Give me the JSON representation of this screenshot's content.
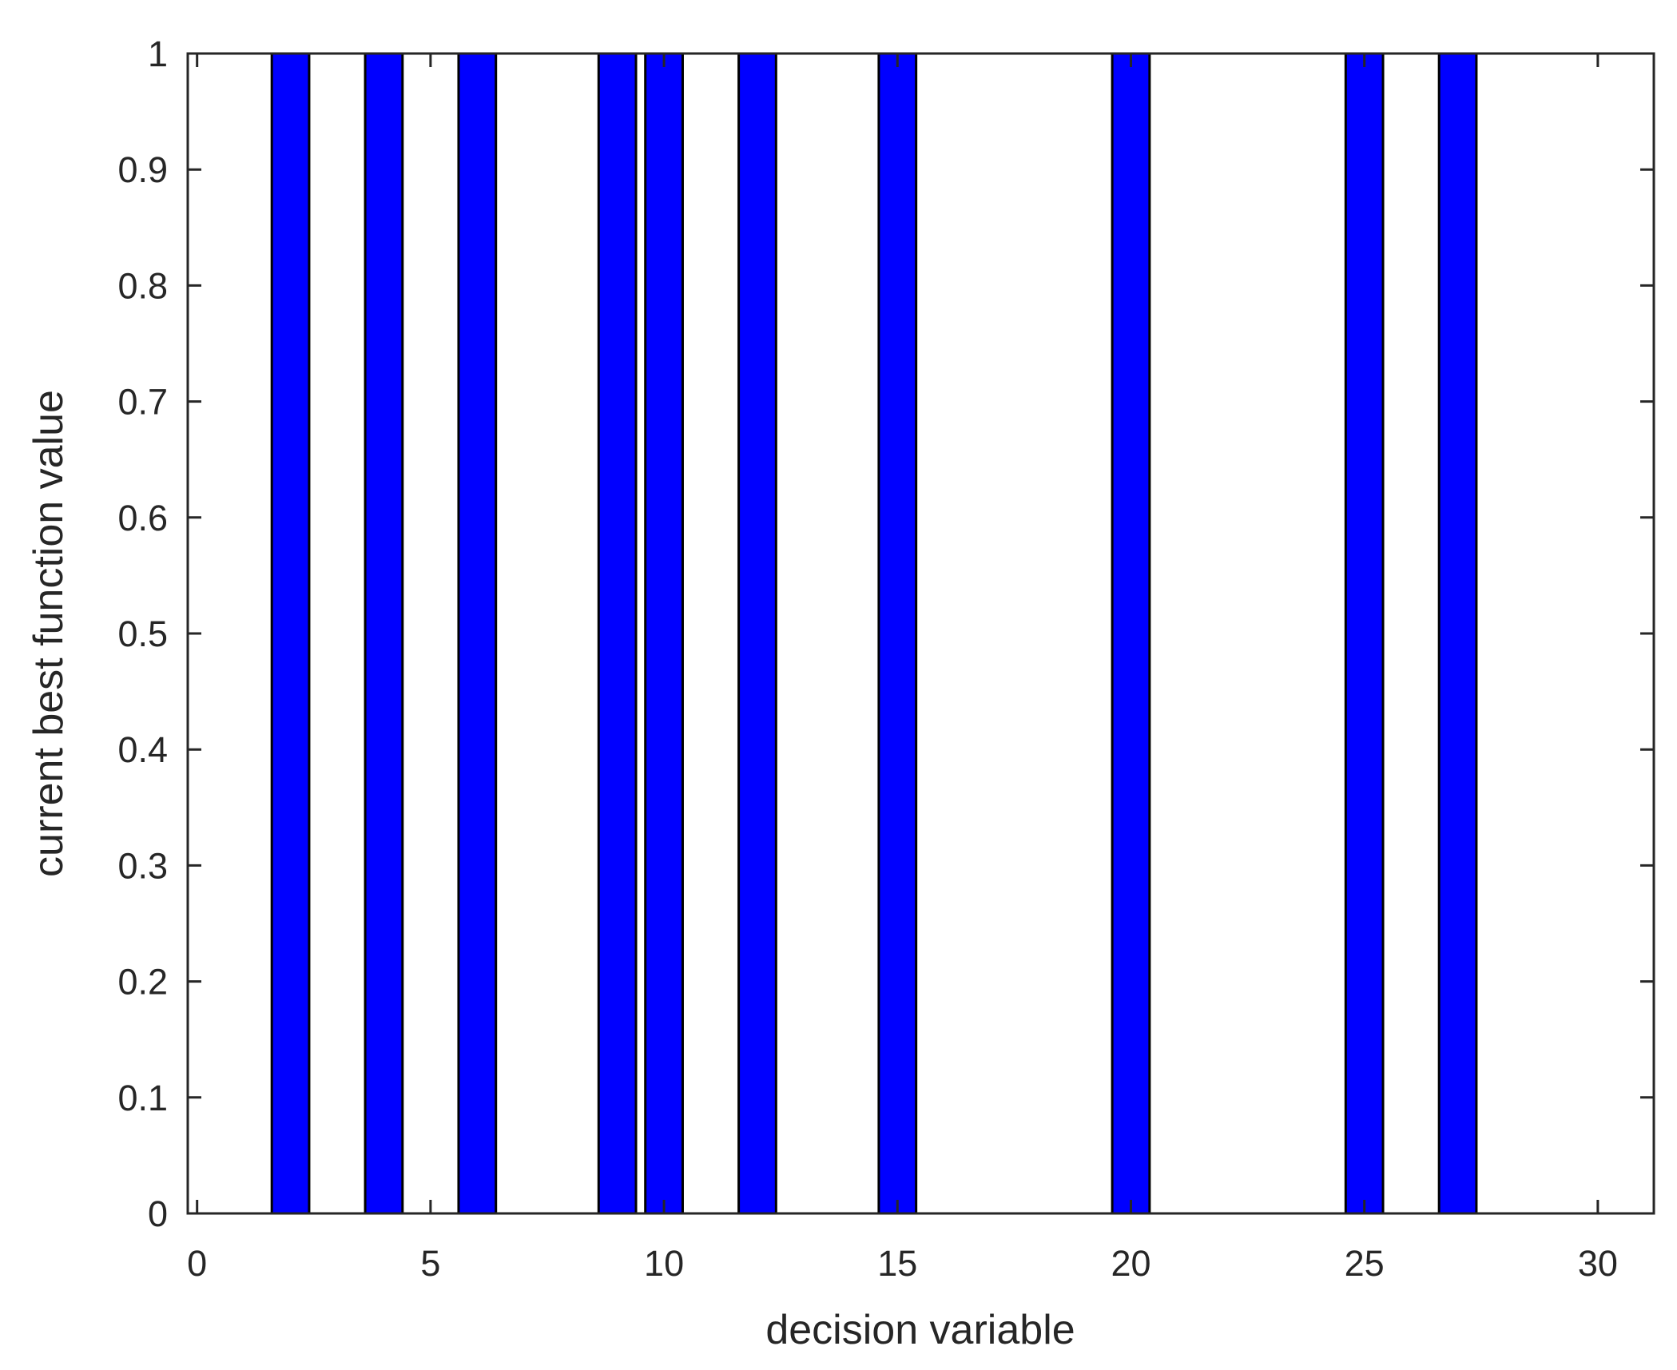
{
  "chart_data": {
    "type": "bar",
    "xlabel": "decision variable",
    "ylabel": "current best function value",
    "xlim": [
      -0.2,
      31.2
    ],
    "ylim": [
      0,
      1
    ],
    "xticks": [
      0,
      5,
      10,
      15,
      20,
      25,
      30
    ],
    "xtick_labels": [
      "0",
      "5",
      "10",
      "15",
      "20",
      "25",
      "30"
    ],
    "yticks": [
      0,
      0.1,
      0.2,
      0.3,
      0.4,
      0.5,
      0.6,
      0.7,
      0.8,
      0.9,
      1
    ],
    "ytick_labels": [
      "0",
      "0.1",
      "0.2",
      "0.3",
      "0.4",
      "0.5",
      "0.6",
      "0.7",
      "0.8",
      "0.9",
      "1"
    ],
    "bar_width": 0.8,
    "series": [
      {
        "x": [
          2,
          4,
          6,
          9,
          10,
          12,
          15,
          20,
          25,
          27
        ],
        "values": [
          1,
          1,
          1,
          1,
          1,
          1,
          1,
          1,
          1,
          1
        ]
      }
    ],
    "bar_color": "#0000ff",
    "edge_color": "#000000",
    "grid": false
  }
}
